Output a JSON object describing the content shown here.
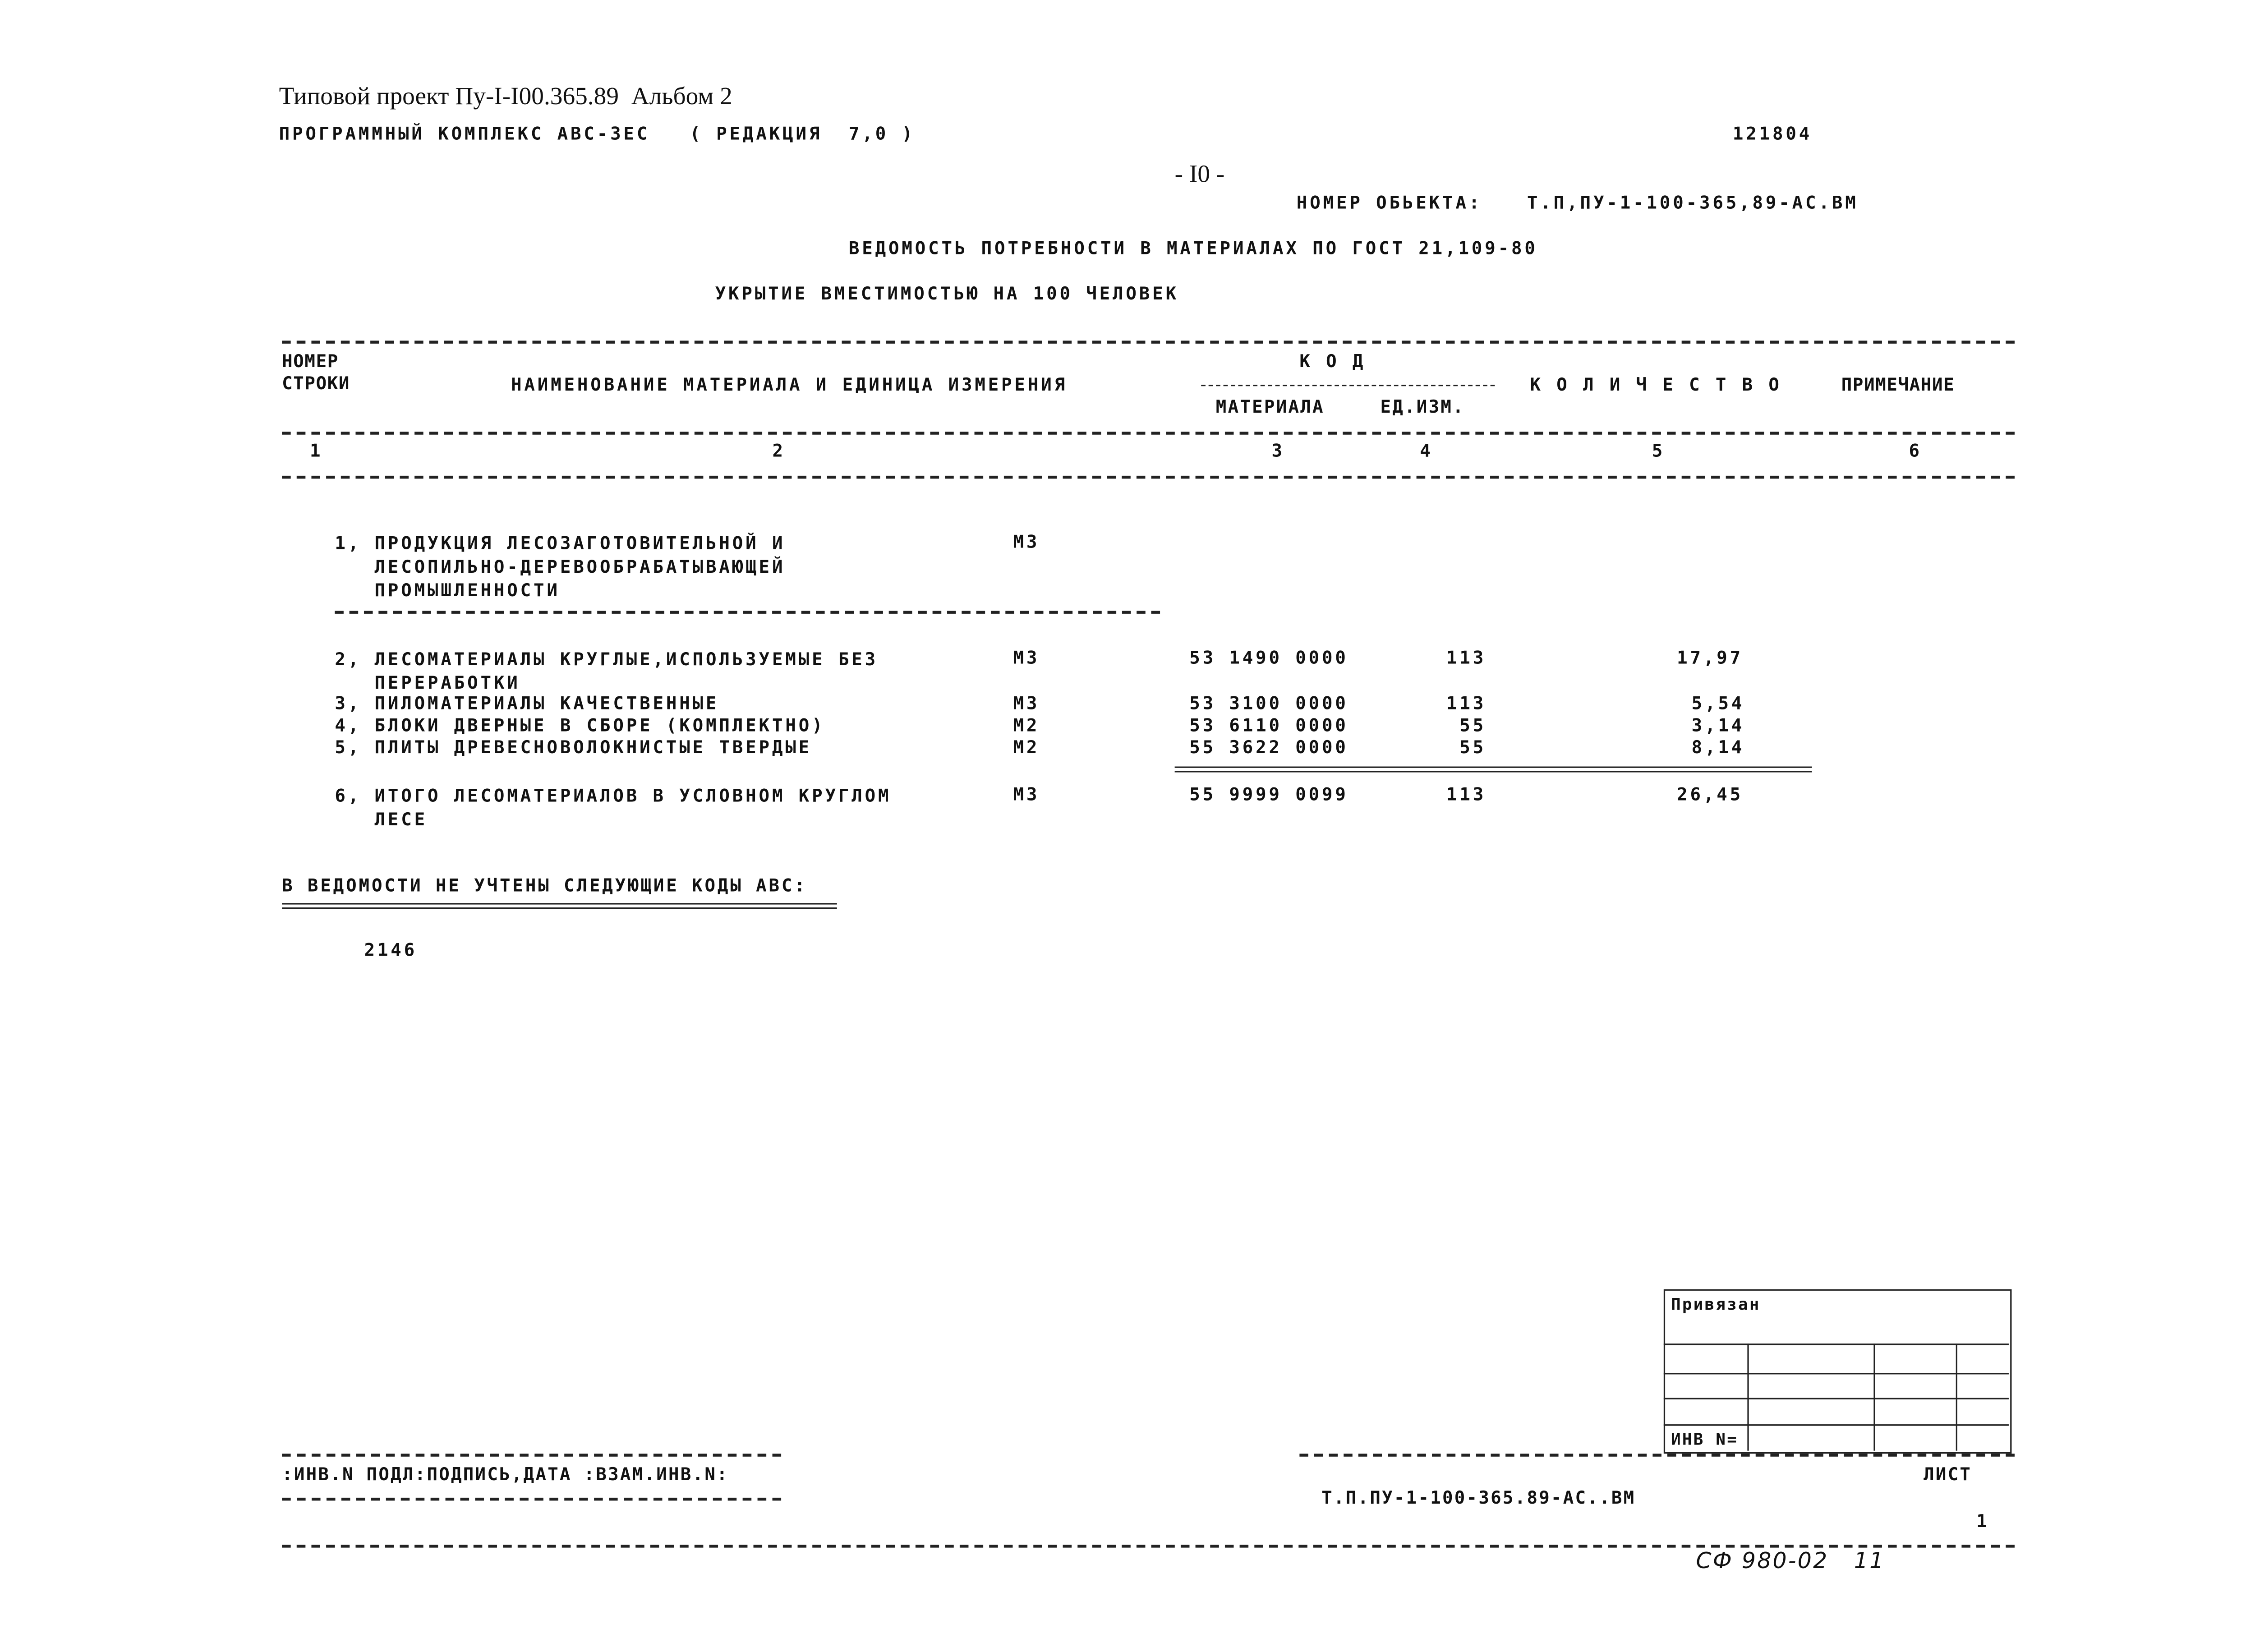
{
  "header": {
    "project": "Типовой проект Пу-I-I00.365.89  Альбом 2",
    "program": "ПРОГРАММНЫЙ КОМПЛЕКС АВС-3ЕС   ( РЕДАКЦИЯ  7,0 )",
    "code": "121804",
    "page": "- I0 -",
    "object_label": "НОМЕР ОБЬЕКТА:",
    "object_value": "Т.П,ПУ-1-100-365,89-АС.ВМ",
    "title": "ВЕДОМОСТЬ ПОТРЕБНОСТИ В МАТЕРИАЛАХ ПО ГОСТ 21,109-80",
    "subtitle": "УКРЫТИЕ ВМЕСТИМОСТЬЮ НА 100 ЧЕЛОВЕК"
  },
  "table": {
    "headers": {
      "row_no": "НОМЕР\nСТРОКИ",
      "name": "НАИМЕНОВАНИЕ МАТЕРИАЛА И ЕДИНИЦА ИЗМЕРЕНИЯ",
      "code": "К О Д",
      "material": "МАТЕРИАЛА",
      "unit": "ЕД.ИЗМ.",
      "quantity": "К О Л И Ч Е С Т В О",
      "note": "ПРИМЕЧАНИЕ"
    },
    "column_numbers": [
      "1",
      "2",
      "3",
      "4",
      "5",
      "6"
    ],
    "rows": [
      {
        "name": "1, ПРОДУКЦИЯ ЛЕСОЗАГОТОВИТЕЛЬНОЙ И\n   ЛЕСОПИЛЬНО-ДЕРЕВООБРАБАТЫВАЮЩЕЙ\n   ПРОМЫШЛЕННОСТИ",
        "unit": "М3",
        "material_code": "",
        "unit_code": "",
        "quantity": ""
      },
      {
        "name": "2, ЛЕСОМАТЕРИАЛЫ КРУГЛЫЕ,ИСПОЛЬЗУЕМЫЕ БЕЗ\n   ПЕРЕРАБОТКИ",
        "unit": "М3",
        "material_code": "53 1490 0000",
        "unit_code": "113",
        "quantity": "17,97"
      },
      {
        "name": "3, ПИЛОМАТЕРИАЛЫ КАЧЕСТВЕННЫЕ",
        "unit": "М3",
        "material_code": "53 3100 0000",
        "unit_code": "113",
        "quantity": "5,54"
      },
      {
        "name": "4, БЛОКИ ДВЕРНЫЕ В СБОРЕ (КОМПЛЕКТНО)",
        "unit": "М2",
        "material_code": "53 6110 0000",
        "unit_code": "55",
        "quantity": "3,14"
      },
      {
        "name": "5, ПЛИТЫ ДРЕВЕСНОВОЛОКНИСТЫЕ ТВЕРДЫЕ",
        "unit": "М2",
        "material_code": "55 3622 0000",
        "unit_code": "55",
        "quantity": "8,14"
      },
      {
        "name": "6, ИТОГО ЛЕСОМАТЕРИАЛОВ В УСЛОВНОМ КРУГЛОМ\n   ЛЕСЕ",
        "unit": "М3",
        "material_code": "55 9999 0099",
        "unit_code": "113",
        "quantity": "26,45"
      }
    ]
  },
  "footnote": {
    "text": "В ВЕДОМОСТИ НЕ УЧТЕНЫ СЛЕДУЮЩИЕ КОДЫ АВС:",
    "codes": "2146"
  },
  "stamp": {
    "bound": "Привязан",
    "inv": "ИНВ N="
  },
  "footer": {
    "inv": ":ИНВ.N ПОДЛ:ПОДПИСЬ,ДАТА :ВЗАМ.ИНВ.N:",
    "doc": "Т.П.ПУ-1-100-365.89-АС..ВМ",
    "sheet_label": "ЛИСТ",
    "sheet_no": "1",
    "handwritten": "СФ 980-02   11"
  }
}
